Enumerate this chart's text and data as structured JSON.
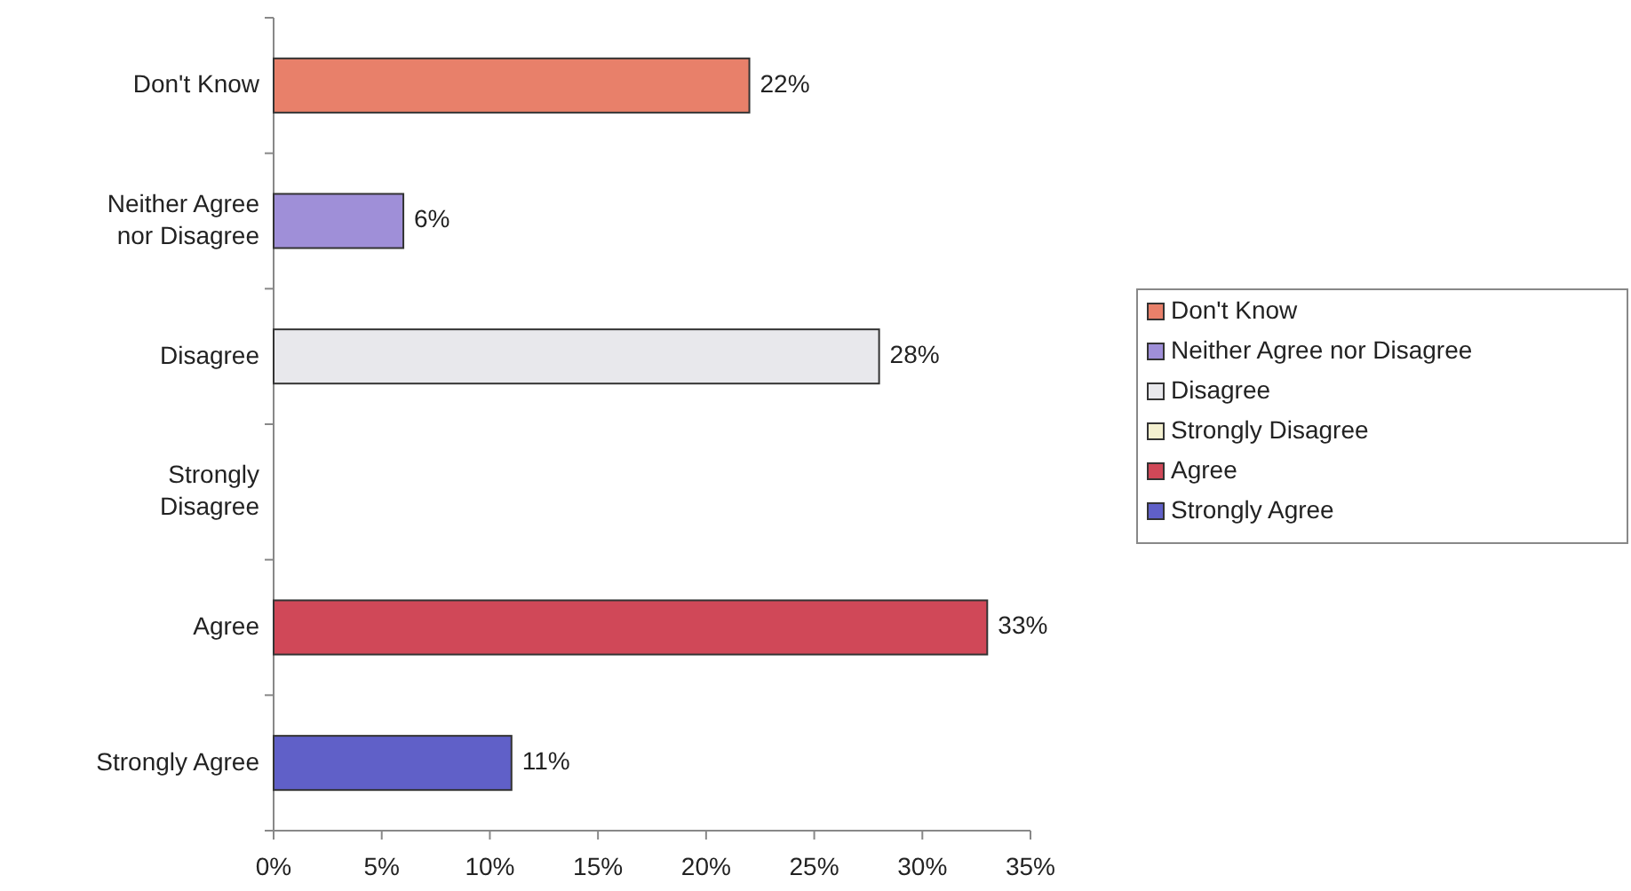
{
  "chart_data": {
    "type": "bar",
    "orientation": "horizontal",
    "categories": [
      "Don't Know",
      "Neither Agree nor Disagree",
      "Disagree",
      "Strongly Disagree",
      "Agree",
      "Strongly Agree"
    ],
    "series": [
      {
        "name": "Don't Know",
        "color": "#e8806a",
        "values": [
          22,
          null,
          null,
          null,
          null,
          null
        ],
        "value_labels": [
          "22%",
          null,
          null,
          null,
          null,
          null
        ]
      },
      {
        "name": "Neither Agree nor Disagree",
        "color": "#9f8fd8",
        "values": [
          null,
          6,
          null,
          null,
          null,
          null
        ],
        "value_labels": [
          null,
          "6%",
          null,
          null,
          null,
          null
        ]
      },
      {
        "name": "Disagree",
        "color": "#e8e8ec",
        "values": [
          null,
          null,
          28,
          null,
          null,
          null
        ],
        "value_labels": [
          null,
          null,
          "28%",
          null,
          null,
          null
        ]
      },
      {
        "name": "Strongly Disagree",
        "color": "#f4f0d0",
        "values": [
          null,
          null,
          null,
          0,
          null,
          null
        ]
      },
      {
        "name": "Agree",
        "color": "#d04858",
        "values": [
          null,
          null,
          null,
          null,
          33,
          null
        ],
        "value_labels": [
          null,
          null,
          null,
          null,
          "33%",
          null
        ]
      },
      {
        "name": "Strongly Agree",
        "color": "#6060c8",
        "values": [
          null,
          null,
          null,
          null,
          null,
          11
        ],
        "value_labels": [
          null,
          null,
          null,
          null,
          null,
          "11%"
        ]
      }
    ],
    "xlim": [
      0,
      35
    ],
    "xticks": [
      {
        "value": 0,
        "label": "0%"
      },
      {
        "value": 5,
        "label": "5%"
      },
      {
        "value": 10,
        "label": "10%"
      },
      {
        "value": 15,
        "label": "15%"
      },
      {
        "value": 20,
        "label": "20%"
      },
      {
        "value": 25,
        "label": "25%"
      },
      {
        "value": 30,
        "label": "30%"
      },
      {
        "value": 35,
        "label": "35%"
      }
    ],
    "legend": "right"
  }
}
